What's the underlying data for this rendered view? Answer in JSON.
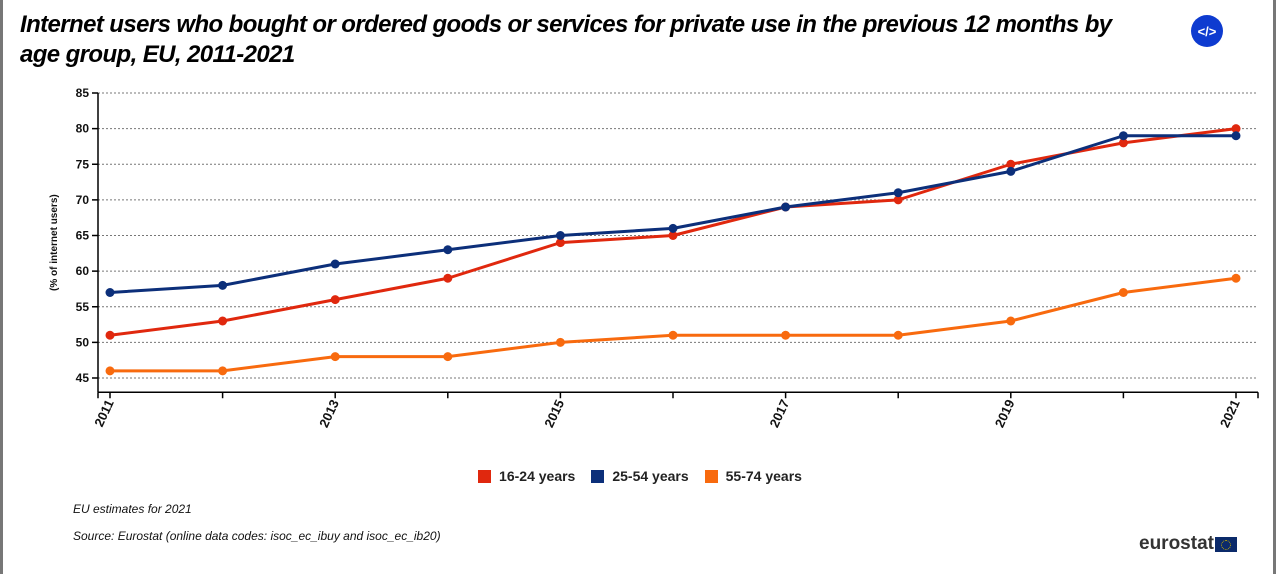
{
  "title": "Internet users who bought or ordered goods or services for private use in the previous 12 months by age group, EU, 2011-2021",
  "embed_button": {
    "label": "</>",
    "icon": "code-icon",
    "color": "#0e3bd0"
  },
  "chart_data": {
    "type": "line",
    "title": "Internet users who bought or ordered goods or services for private use in the previous 12 months by age group, EU, 2011-2021",
    "xlabel": "",
    "ylabel": "(% of internet users)",
    "x": [
      2011,
      2012,
      2013,
      2014,
      2015,
      2016,
      2017,
      2018,
      2019,
      2020,
      2021
    ],
    "x_tick_labels": [
      "2011",
      "2013",
      "2015",
      "2017",
      "2019",
      "2021"
    ],
    "y_ticks": [
      45,
      50,
      55,
      60,
      65,
      70,
      75,
      80,
      85
    ],
    "ylim": [
      43,
      85
    ],
    "grid": "horizontal dotted",
    "legend_position": "bottom",
    "series": [
      {
        "name": "16-24 years",
        "color": "#e0280e",
        "values": [
          51,
          53,
          56,
          59,
          64,
          65,
          69,
          70,
          75,
          78,
          80
        ]
      },
      {
        "name": "25-54 years",
        "color": "#0c2f7a",
        "values": [
          57,
          58,
          61,
          63,
          65,
          66,
          69,
          71,
          74,
          79,
          79
        ]
      },
      {
        "name": "55-74 years",
        "color": "#f86a0e",
        "values": [
          46,
          46,
          48,
          48,
          50,
          51,
          51,
          51,
          53,
          57,
          59
        ]
      }
    ]
  },
  "notes": {
    "estimate": "EU estimates for 2021",
    "source": "Source: Eurostat (online data codes: isoc_ec_ibuy and isoc_ec_ib20)"
  },
  "logo": {
    "text": "eurostat"
  }
}
